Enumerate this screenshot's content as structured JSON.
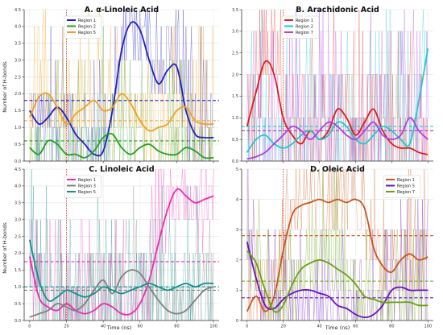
{
  "figure": {
    "y_axis_label": "Number of H-bonds",
    "x_axis_label": "Time (ns)"
  },
  "colors": {
    "blue": "#1f1fbf",
    "green": "#22a022",
    "orange": "#f0a020",
    "red": "#e01c1c",
    "cyan": "#1fc8c8",
    "purple": "#b040e0",
    "magenta": "#ee2ab0",
    "gray": "#808080",
    "teal": "#10908a",
    "brown": "#c8561a",
    "violet": "#6a10c0",
    "olive": "#6aa010"
  },
  "chart_data": [
    {
      "type": "line",
      "title": "A. α-Linoleic Acid",
      "xlim": [
        -3,
        103
      ],
      "ylim": [
        0,
        4.5
      ],
      "xticks": [
        0,
        20,
        40,
        60,
        80,
        100
      ],
      "yticks": [
        0.0,
        0.5,
        1.0,
        1.5,
        2.0,
        2.5,
        3.0,
        3.5,
        4.0,
        4.5
      ],
      "xticklabels": [
        "",
        "",
        "",
        "",
        "",
        ""
      ],
      "legend": "top-left",
      "vline_x": 20,
      "series": [
        {
          "name": "Region 1",
          "color": "blue",
          "x": [
            0,
            5,
            10,
            15,
            20,
            25,
            30,
            35,
            40,
            45,
            50,
            55,
            60,
            65,
            70,
            75,
            80,
            85,
            90,
            95,
            100
          ],
          "smooth": [
            1.5,
            1.1,
            1.3,
            1.6,
            1.3,
            0.8,
            0.5,
            0.2,
            0.3,
            1.5,
            3.3,
            4.1,
            3.9,
            3.0,
            2.3,
            2.7,
            2.8,
            1.5,
            0.8,
            0.7,
            0.7
          ],
          "mean": 1.8
        },
        {
          "name": "Region 2",
          "color": "green",
          "x": [
            0,
            5,
            10,
            15,
            20,
            25,
            30,
            35,
            40,
            45,
            50,
            55,
            60,
            65,
            70,
            75,
            80,
            85,
            90,
            95,
            100
          ],
          "smooth": [
            0.4,
            0.2,
            0.6,
            0.5,
            0.2,
            0.2,
            0.1,
            0.3,
            0.7,
            0.8,
            0.4,
            0.2,
            0.4,
            0.5,
            0.3,
            0.2,
            0.2,
            0.4,
            0.3,
            0.1,
            0.1
          ],
          "mean": 0.6
        },
        {
          "name": "Region 5",
          "color": "orange",
          "x": [
            0,
            5,
            10,
            15,
            20,
            25,
            30,
            35,
            40,
            45,
            50,
            55,
            60,
            65,
            70,
            75,
            80,
            85,
            90,
            95,
            100
          ],
          "smooth": [
            1.3,
            1.9,
            2.0,
            1.6,
            1.1,
            1.4,
            1.6,
            1.8,
            1.5,
            1.6,
            2.0,
            1.7,
            1.2,
            0.9,
            1.0,
            1.1,
            1.5,
            1.6,
            1.2,
            1.1,
            1.1
          ],
          "mean": 1.2
        }
      ]
    },
    {
      "type": "line",
      "title": "B. Arachidonic Acid",
      "xlim": [
        -3,
        103
      ],
      "ylim": [
        0,
        3.5
      ],
      "xticks": [
        0,
        20,
        40,
        60,
        80,
        100
      ],
      "yticks": [
        0.0,
        0.5,
        1.0,
        1.5,
        2.0,
        2.5,
        3.0,
        3.5
      ],
      "xticklabels": [
        "",
        "",
        "",
        "",
        "",
        ""
      ],
      "legend": "top-left",
      "vline_x": 20,
      "series": [
        {
          "name": "Region 1",
          "color": "red",
          "x": [
            0,
            5,
            10,
            15,
            20,
            25,
            30,
            35,
            40,
            45,
            50,
            55,
            60,
            65,
            70,
            75,
            80,
            85,
            90,
            95,
            100
          ],
          "smooth": [
            0.8,
            1.6,
            2.3,
            2.0,
            1.0,
            0.6,
            0.4,
            0.7,
            0.5,
            0.7,
            1.2,
            1.0,
            0.6,
            0.9,
            1.2,
            0.7,
            0.4,
            0.3,
            0.3,
            0.2,
            0.15
          ],
          "mean": 0.7
        },
        {
          "name": "Region 2",
          "color": "cyan",
          "x": [
            0,
            5,
            10,
            15,
            20,
            25,
            30,
            35,
            40,
            45,
            50,
            55,
            60,
            65,
            70,
            75,
            80,
            85,
            90,
            95,
            100
          ],
          "smooth": [
            0.2,
            0.5,
            0.6,
            0.4,
            0.3,
            0.4,
            0.6,
            0.7,
            0.5,
            0.6,
            0.9,
            0.8,
            0.5,
            0.4,
            0.6,
            0.8,
            0.7,
            0.5,
            0.4,
            1.4,
            2.6
          ],
          "mean": 0.8
        },
        {
          "name": "Region 7",
          "color": "purple",
          "x": [
            0,
            5,
            10,
            15,
            20,
            25,
            30,
            35,
            40,
            45,
            50,
            55,
            60,
            65,
            70,
            75,
            80,
            85,
            90,
            95,
            100
          ],
          "smooth": [
            0.05,
            0.1,
            0.2,
            0.4,
            0.6,
            0.8,
            0.7,
            0.5,
            0.7,
            0.9,
            0.8,
            0.6,
            0.5,
            0.7,
            0.9,
            0.6,
            0.5,
            0.6,
            1.0,
            0.7,
            0.5
          ],
          "mean": 0.7
        }
      ]
    },
    {
      "type": "line",
      "title": "C. Linoleic Acid",
      "xlim": [
        -3,
        103
      ],
      "ylim": [
        0,
        4.5
      ],
      "xticks": [
        0,
        20,
        40,
        60,
        80,
        100
      ],
      "yticks": [
        0.0,
        0.5,
        1.0,
        1.5,
        2.0,
        2.5,
        3.0,
        3.5,
        4.0,
        4.5
      ],
      "xticklabels": [
        "0",
        "20",
        "40",
        "60",
        "80",
        "100"
      ],
      "legend": "top-left",
      "vline_x": 20,
      "series": [
        {
          "name": "Region 1",
          "color": "magenta",
          "x": [
            0,
            5,
            10,
            15,
            20,
            25,
            30,
            35,
            40,
            45,
            50,
            55,
            60,
            65,
            70,
            75,
            80,
            85,
            90,
            95,
            100
          ],
          "smooth": [
            1.9,
            0.7,
            0.4,
            0.3,
            0.5,
            0.3,
            0.2,
            0.3,
            0.5,
            0.4,
            0.2,
            0.2,
            0.5,
            1.2,
            2.3,
            3.3,
            3.9,
            3.7,
            3.5,
            3.6,
            3.7
          ],
          "mean": 1.75
        },
        {
          "name": "Region 3",
          "color": "gray",
          "x": [
            0,
            5,
            10,
            15,
            20,
            25,
            30,
            35,
            40,
            45,
            50,
            55,
            60,
            65,
            70,
            75,
            80,
            85,
            90,
            95,
            100
          ],
          "smooth": [
            0.1,
            0.2,
            0.3,
            0.5,
            0.4,
            0.3,
            0.5,
            0.9,
            1.2,
            0.8,
            1.3,
            1.5,
            1.4,
            1.0,
            0.6,
            0.3,
            0.2,
            0.3,
            0.6,
            0.9,
            1.0
          ],
          "mean": 0.9
        },
        {
          "name": "Region 5",
          "color": "teal",
          "x": [
            0,
            5,
            10,
            15,
            20,
            25,
            30,
            35,
            40,
            45,
            50,
            55,
            60,
            65,
            70,
            75,
            80,
            85,
            90,
            95,
            100
          ],
          "smooth": [
            2.4,
            1.2,
            0.6,
            0.7,
            0.9,
            0.8,
            0.7,
            0.8,
            1.0,
            0.9,
            0.8,
            0.9,
            1.0,
            1.1,
            1.0,
            0.9,
            1.0,
            1.1,
            1.0,
            1.1,
            1.1
          ],
          "mean": 1.0
        }
      ]
    },
    {
      "type": "line",
      "title": "D. Oleic Acid",
      "xlim": [
        -3,
        103
      ],
      "ylim": [
        0,
        5
      ],
      "xticks": [
        0,
        20,
        40,
        60,
        80,
        100
      ],
      "yticks": [
        0,
        1,
        2,
        3,
        4,
        5
      ],
      "xticklabels": [
        "0",
        "20",
        "40",
        "60",
        "80",
        "100"
      ],
      "legend": "top-right",
      "vline_x": 20,
      "series": [
        {
          "name": "Region 1",
          "color": "brown",
          "x": [
            0,
            5,
            10,
            15,
            20,
            25,
            30,
            35,
            40,
            45,
            50,
            55,
            60,
            65,
            70,
            75,
            80,
            85,
            90,
            95,
            100
          ],
          "smooth": [
            0.3,
            0.8,
            0.3,
            0.8,
            2.3,
            3.5,
            3.8,
            3.9,
            4.0,
            3.9,
            4.0,
            3.9,
            4.0,
            3.7,
            2.4,
            1.8,
            1.6,
            2.0,
            2.2,
            2.0,
            2.1
          ],
          "mean": 2.8
        },
        {
          "name": "Region 5",
          "color": "violet",
          "x": [
            0,
            5,
            10,
            15,
            20,
            25,
            30,
            35,
            40,
            45,
            50,
            55,
            60,
            65,
            70,
            75,
            80,
            85,
            90,
            95,
            100
          ],
          "smooth": [
            2.6,
            1.4,
            0.5,
            0.4,
            0.7,
            0.9,
            1.0,
            1.0,
            0.9,
            0.8,
            0.5,
            0.4,
            0.2,
            0.1,
            0.2,
            0.5,
            1.0,
            1.1,
            1.0,
            1.0,
            1.0
          ],
          "mean": 0.75
        },
        {
          "name": "Region 7",
          "color": "olive",
          "x": [
            0,
            5,
            10,
            15,
            20,
            25,
            30,
            35,
            40,
            45,
            50,
            55,
            60,
            65,
            70,
            75,
            80,
            85,
            90,
            95,
            100
          ],
          "smooth": [
            2.3,
            1.9,
            1.0,
            0.3,
            0.5,
            1.2,
            1.7,
            1.9,
            2.0,
            1.9,
            1.7,
            1.5,
            1.2,
            0.8,
            0.7,
            0.6,
            0.6,
            0.6,
            0.6,
            0.5,
            0.5
          ],
          "mean": 1.3
        }
      ]
    }
  ]
}
